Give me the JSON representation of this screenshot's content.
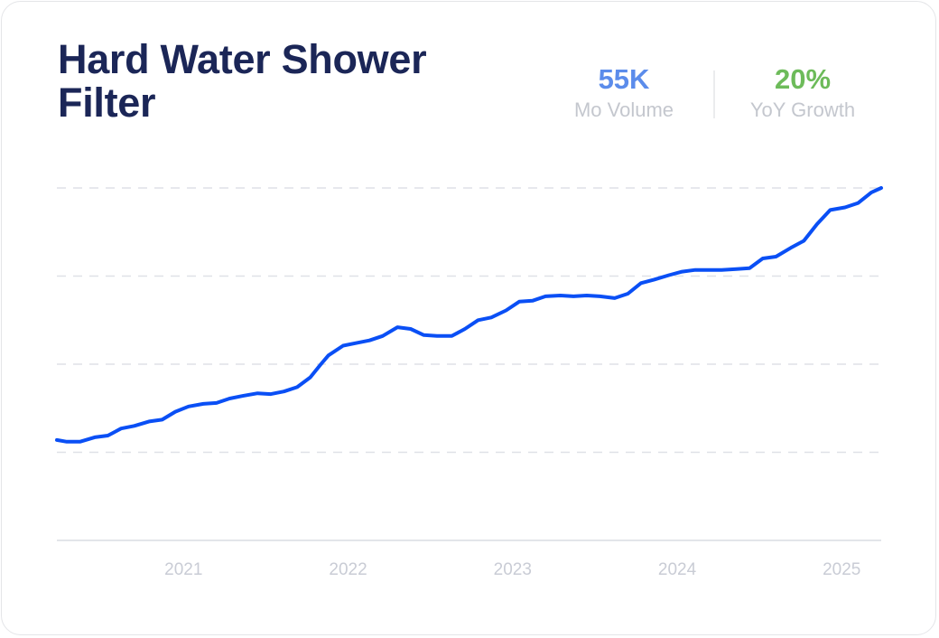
{
  "chart_data": {
    "type": "line",
    "title": "Hard Water Shower Filter",
    "stats": [
      {
        "value": "55K",
        "label": "Mo Volume",
        "color": "#5b8ceb"
      },
      {
        "value": "20%",
        "label": "YoY Growth",
        "color": "#6dbb5a"
      }
    ],
    "color": "#0a4ff5",
    "x": [
      2020.23,
      2020.29,
      2020.37,
      2020.46,
      2020.54,
      2020.62,
      2020.7,
      2020.79,
      2020.87,
      2020.95,
      2021.03,
      2021.12,
      2021.2,
      2021.28,
      2021.36,
      2021.45,
      2021.53,
      2021.61,
      2021.69,
      2021.77,
      2021.83,
      2021.88,
      2021.97,
      2022.05,
      2022.13,
      2022.21,
      2022.3,
      2022.38,
      2022.46,
      2022.54,
      2022.63,
      2022.71,
      2022.79,
      2022.87,
      2022.96,
      2023.04,
      2023.12,
      2023.2,
      2023.29,
      2023.37,
      2023.45,
      2023.53,
      2023.62,
      2023.7,
      2023.78,
      2023.86,
      2023.95,
      2024.03,
      2024.11,
      2024.19,
      2024.27,
      2024.36,
      2024.44,
      2024.52,
      2024.6,
      2024.69,
      2024.77,
      2024.85,
      2024.93,
      2025.02,
      2025.1,
      2025.18,
      2025.24
    ],
    "values": [
      1.14,
      1.12,
      1.12,
      1.17,
      1.19,
      1.27,
      1.3,
      1.35,
      1.37,
      1.46,
      1.52,
      1.55,
      1.56,
      1.61,
      1.64,
      1.67,
      1.66,
      1.69,
      1.74,
      1.85,
      1.99,
      2.1,
      2.21,
      2.24,
      2.27,
      2.32,
      2.42,
      2.4,
      2.33,
      2.32,
      2.32,
      2.4,
      2.5,
      2.53,
      2.61,
      2.71,
      2.72,
      2.77,
      2.78,
      2.77,
      2.78,
      2.77,
      2.75,
      2.8,
      2.92,
      2.96,
      3.01,
      3.05,
      3.07,
      3.07,
      3.07,
      3.08,
      3.09,
      3.2,
      3.22,
      3.32,
      3.4,
      3.59,
      3.75,
      3.78,
      3.83,
      3.95,
      4.0
    ],
    "xlim": [
      2020.23,
      2025.24
    ],
    "xticks": [
      2021,
      2022,
      2023,
      2024,
      2025
    ],
    "ylim": [
      0,
      4
    ],
    "yticks": [
      0,
      1,
      2,
      3,
      4
    ],
    "grid": true
  }
}
